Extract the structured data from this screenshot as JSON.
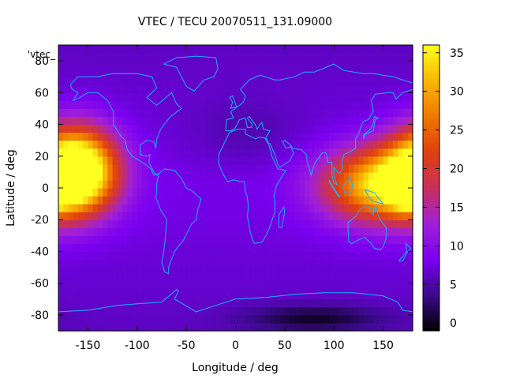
{
  "chart_data": {
    "type": "heatmap",
    "title": "VTEC / TECU 20070511_131.09000",
    "xlabel": "Longitude / deg",
    "ylabel": "Latitude / deg",
    "key_label": "'vtec_",
    "xlim": [
      -180,
      180
    ],
    "ylim": [
      -90,
      90
    ],
    "x_ticks": [
      -150,
      -100,
      -50,
      0,
      50,
      100,
      150
    ],
    "y_ticks": [
      80,
      60,
      40,
      20,
      0,
      -20,
      -40,
      -60,
      -80
    ],
    "colorbar": {
      "range": [
        -1,
        36
      ],
      "ticks": [
        0,
        5,
        10,
        15,
        20,
        25,
        30,
        35
      ],
      "palette": [
        "#000000",
        "#3a0a8a",
        "#7a00f0",
        "#a020d8",
        "#c8305a",
        "#e04010",
        "#f07800",
        "#f8b800",
        "#ffff20"
      ]
    },
    "grid": false,
    "grid_resolution": {
      "dlon": 5,
      "dlat": 5
    },
    "background_level": 8,
    "features": [
      {
        "lon": -162,
        "lat": 12,
        "peak": 36,
        "sigma_lon": 28,
        "sigma_lat": 18
      },
      {
        "lon": 148,
        "lat": 2,
        "peak": 26,
        "sigma_lon": 40,
        "sigma_lat": 16
      },
      {
        "lon": 172,
        "lat": -2,
        "peak": 10,
        "sigma_lon": 10,
        "sigma_lat": 8
      },
      {
        "lon": 80,
        "lat": -82,
        "peak": -6,
        "sigma_lon": 50,
        "sigma_lat": 6
      },
      {
        "lon": 10,
        "lat": 35,
        "peak": -2,
        "sigma_lon": 40,
        "sigma_lat": 15
      }
    ],
    "coastline_color": "#1ab2ff"
  }
}
